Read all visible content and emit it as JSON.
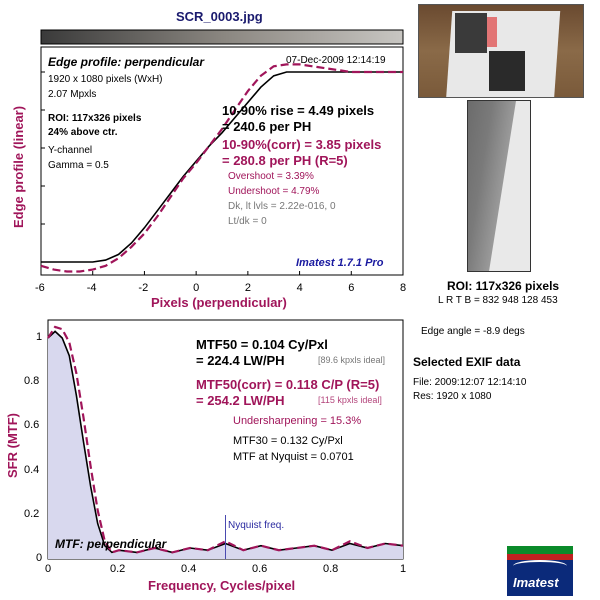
{
  "title": "SCR_0003.jpg",
  "colors": {
    "maroon": "#a0155a",
    "navy": "#1a1a6e",
    "blue": "#1a1aa0",
    "fill": "#d8d8ee"
  },
  "top_panel": {
    "title": "Edge profile: perpendicular",
    "datetime": "07-Dec-2009 12:14:19",
    "image_size": "1920 x 1080 pixels (WxH)",
    "mpxls": "2.07 Mpxls",
    "roi": "ROI: 117x326 pixels",
    "above_ctr": "24% above ctr.",
    "channel": "Y-channel",
    "gamma": "Gamma = 0.5",
    "rise": "10-90% rise = 4.49 pixels",
    "rise_ph": "= 240.6 per PH",
    "rise_corr": "10-90%(corr) = 3.85 pixels",
    "rise_corr_ph": "= 280.8 per PH  (R=5)",
    "overshoot": "Overshoot = 3.39%",
    "undershoot": "Undershoot = 4.79%",
    "dk": "Dk, lt lvls = 2.22e-016, 0",
    "ltdk": "Lt/dk = 0",
    "version": "Imatest 1.7.1 Pro"
  },
  "bottom_panel": {
    "mtf50": "MTF50 = 0.104 Cy/Pxl",
    "mtf50_lw": "= 224.4 LW/PH",
    "mtf50_ideal": "[89.6 kpxls ideal]",
    "mtf50_corr": "MTF50(corr) = 0.118 C/P  (R=5)",
    "mtf50_corr_lw": "= 254.2 LW/PH",
    "mtf50_corr_ideal": "[115 kpxls ideal]",
    "undersharpening": "Undersharpening = 15.3%",
    "mtf30": "MTF30 = 0.132 Cy/Pxl",
    "mtf_nyq": "MTF at Nyquist = 0.0701",
    "nyquist_label": "Nyquist freq.",
    "panel_label": "MTF: perpendicular"
  },
  "right_panel": {
    "roi_label": "ROI: 117x326 pixels",
    "lrtb": "L R T B = 832 948  128 453",
    "edge_angle": "Edge angle = -8.9 degs",
    "exif_title": "Selected EXIF data",
    "file": "File:  2009:12:07 12:14:10",
    "res": "Res:   1920 x 1080",
    "logo_text": "Imatest"
  },
  "chart_data": [
    {
      "type": "line",
      "title": "Edge profile: perpendicular",
      "xlabel": "Pixels (perpendicular)",
      "ylabel": "Edge profile (linear)",
      "xlim": [
        -6,
        8
      ],
      "x_ticks": [
        -6,
        -4,
        -2,
        0,
        2,
        4,
        6,
        8
      ],
      "series": [
        {
          "x": [
            -6,
            -5,
            -4,
            -3.5,
            -3,
            -2.5,
            -2,
            -1.5,
            -1,
            -0.5,
            0,
            0.5,
            1,
            1.5,
            2,
            2.5,
            3,
            3.5,
            4,
            5,
            6,
            7,
            8
          ],
          "y": [
            0.0,
            0.0,
            0.0,
            0.01,
            0.04,
            0.1,
            0.18,
            0.27,
            0.36,
            0.45,
            0.53,
            0.61,
            0.68,
            0.76,
            0.84,
            0.92,
            0.98,
            1.0,
            1.0,
            1.0,
            1.0,
            1.0,
            1.0
          ]
        },
        {
          "x": [
            -6,
            -5.5,
            -5,
            -4.5,
            -4,
            -3.5,
            -3,
            -2.5,
            -2,
            -1.5,
            -1,
            -0.5,
            0,
            0.5,
            1,
            1.5,
            2,
            2.5,
            3,
            3.5,
            4,
            4.5,
            5,
            6,
            7,
            8
          ],
          "y": [
            -0.02,
            -0.04,
            -0.05,
            -0.05,
            -0.04,
            -0.02,
            0.02,
            0.08,
            0.15,
            0.24,
            0.34,
            0.44,
            0.52,
            0.61,
            0.7,
            0.8,
            0.9,
            0.98,
            1.03,
            1.04,
            1.04,
            1.03,
            1.02,
            1.0,
            1.0,
            1.0
          ]
        }
      ]
    },
    {
      "type": "line",
      "xlabel": "Frequency, Cycles/pixel",
      "ylabel": "SFR (MTF)",
      "xlim": [
        0,
        1
      ],
      "ylim": [
        0,
        1
      ],
      "x_ticks": [
        0,
        0.2,
        0.4,
        0.6,
        0.8,
        1
      ],
      "y_ticks": [
        0,
        0.2,
        0.4,
        0.6,
        0.8,
        1
      ],
      "nyquist": 0.5,
      "series": [
        {
          "x": [
            0,
            0.02,
            0.04,
            0.06,
            0.08,
            0.1,
            0.12,
            0.14,
            0.16,
            0.18,
            0.2,
            0.25,
            0.3,
            0.35,
            0.4,
            0.45,
            0.5,
            0.55,
            0.6,
            0.65,
            0.7,
            0.75,
            0.8,
            0.85,
            0.9,
            0.95,
            1.0
          ],
          "y": [
            1.0,
            1.03,
            1.0,
            0.92,
            0.74,
            0.53,
            0.33,
            0.16,
            0.06,
            0.03,
            0.04,
            0.03,
            0.05,
            0.03,
            0.05,
            0.04,
            0.07,
            0.04,
            0.06,
            0.04,
            0.05,
            0.06,
            0.04,
            0.07,
            0.05,
            0.07,
            0.06
          ]
        },
        {
          "x": [
            0,
            0.02,
            0.04,
            0.06,
            0.08,
            0.1,
            0.12,
            0.14,
            0.16,
            0.18,
            0.2,
            0.25,
            0.3,
            0.35,
            0.4,
            0.45,
            0.5,
            0.55,
            0.6,
            0.65,
            0.7,
            0.75,
            0.8,
            0.85,
            0.9,
            0.95,
            1.0
          ],
          "y": [
            1.0,
            1.05,
            1.04,
            0.98,
            0.84,
            0.64,
            0.42,
            0.22,
            0.08,
            0.03,
            0.04,
            0.03,
            0.05,
            0.03,
            0.05,
            0.04,
            0.08,
            0.04,
            0.06,
            0.04,
            0.05,
            0.06,
            0.04,
            0.08,
            0.05,
            0.07,
            0.06
          ]
        }
      ]
    }
  ]
}
